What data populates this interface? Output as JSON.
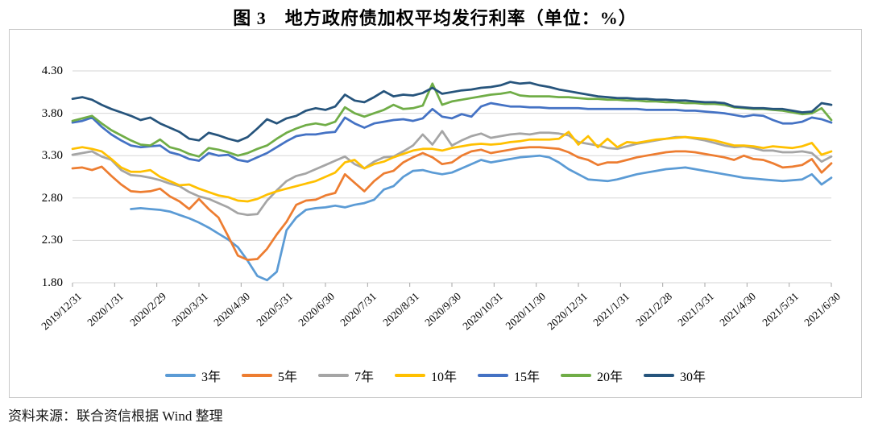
{
  "title": "图 3　地方政府债加权平均发行利率（单位：%）",
  "source": "资料来源：联合资信根据 Wind 整理",
  "colors": {
    "grid": "#d6d6d6",
    "axis": "#a6a6a6",
    "box_border": "#c9c9c9"
  },
  "chart_data": {
    "type": "line",
    "title": "图 3 地方政府债加权平均发行利率（单位：%）",
    "xlabel": "",
    "ylabel": "",
    "ylim": [
      1.8,
      4.3
    ],
    "y_ticks": [
      4.3,
      3.8,
      3.3,
      2.8,
      2.3,
      1.8
    ],
    "y_tick_labels": [
      "4.30",
      "3.80",
      "3.30",
      "2.80",
      "2.30",
      "1.80"
    ],
    "grid": "horizontal",
    "legend_position": "bottom",
    "x_unit": "weekly points from 2019/12/31 to 2021/6/30",
    "x_tick_labels": [
      "2019/12/31",
      "2020/1/31",
      "2020/2/29",
      "2020/3/31",
      "2020/4/30",
      "2020/5/31",
      "2020/6/30",
      "2020/7/31",
      "2020/8/31",
      "2020/9/30",
      "2020/10/31",
      "2020/11/30",
      "2020/12/31",
      "2021/1/31",
      "2021/2/28",
      "2021/3/31",
      "2021/4/30",
      "2021/5/31",
      "2021/6/30"
    ],
    "series": [
      {
        "name": "3年",
        "color": "#5B9BD5",
        "values": [
          null,
          null,
          null,
          null,
          null,
          null,
          2.67,
          2.68,
          2.67,
          2.66,
          2.64,
          2.6,
          2.56,
          2.51,
          2.45,
          2.38,
          2.31,
          2.22,
          2.06,
          1.88,
          1.83,
          1.93,
          2.42,
          2.57,
          2.66,
          2.68,
          2.69,
          2.71,
          2.69,
          2.72,
          2.74,
          2.78,
          2.9,
          2.94,
          3.05,
          3.12,
          3.13,
          3.1,
          3.08,
          3.1,
          3.15,
          3.2,
          3.25,
          3.22,
          3.24,
          3.26,
          3.28,
          3.29,
          3.3,
          3.28,
          3.22,
          3.14,
          3.08,
          3.02,
          3.01,
          3.0,
          3.02,
          3.05,
          3.08,
          3.1,
          3.12,
          3.14,
          3.15,
          3.16,
          3.14,
          3.12,
          3.1,
          3.08,
          3.06,
          3.04,
          3.03,
          3.02,
          3.01,
          3.0,
          3.01,
          3.02,
          3.08,
          2.96,
          3.04
        ]
      },
      {
        "name": "5年",
        "color": "#ED7D31",
        "values": [
          3.15,
          3.16,
          3.13,
          3.17,
          3.06,
          2.96,
          2.88,
          2.87,
          2.88,
          2.91,
          2.82,
          2.76,
          2.67,
          2.79,
          2.67,
          2.57,
          2.35,
          2.12,
          2.07,
          2.08,
          2.2,
          2.37,
          2.52,
          2.72,
          2.77,
          2.78,
          2.83,
          2.86,
          3.08,
          2.98,
          2.88,
          3.0,
          3.09,
          3.12,
          3.22,
          3.28,
          3.33,
          3.28,
          3.2,
          3.22,
          3.3,
          3.35,
          3.37,
          3.33,
          3.35,
          3.37,
          3.39,
          3.4,
          3.4,
          3.39,
          3.38,
          3.34,
          3.28,
          3.25,
          3.19,
          3.22,
          3.22,
          3.25,
          3.28,
          3.3,
          3.32,
          3.34,
          3.35,
          3.35,
          3.34,
          3.32,
          3.3,
          3.28,
          3.25,
          3.3,
          3.26,
          3.25,
          3.21,
          3.16,
          3.17,
          3.19,
          3.26,
          3.1,
          3.21
        ]
      },
      {
        "name": "7年",
        "color": "#A5A5A5",
        "values": [
          3.31,
          3.33,
          3.35,
          3.29,
          3.25,
          3.13,
          3.07,
          3.06,
          3.04,
          3.01,
          2.97,
          2.94,
          2.87,
          2.82,
          2.79,
          2.74,
          2.69,
          2.62,
          2.6,
          2.61,
          2.77,
          2.89,
          3.0,
          3.06,
          3.09,
          3.14,
          3.19,
          3.24,
          3.29,
          3.2,
          3.15,
          3.23,
          3.28,
          3.29,
          3.35,
          3.42,
          3.55,
          3.43,
          3.59,
          3.42,
          3.48,
          3.53,
          3.56,
          3.51,
          3.53,
          3.55,
          3.56,
          3.55,
          3.57,
          3.57,
          3.56,
          3.54,
          3.46,
          3.44,
          3.42,
          3.39,
          3.38,
          3.41,
          3.44,
          3.46,
          3.48,
          3.5,
          3.52,
          3.52,
          3.5,
          3.48,
          3.45,
          3.42,
          3.4,
          3.41,
          3.39,
          3.36,
          3.36,
          3.34,
          3.34,
          3.35,
          3.33,
          3.23,
          3.29
        ]
      },
      {
        "name": "10年",
        "color": "#FFC000",
        "values": [
          3.38,
          3.4,
          3.38,
          3.35,
          3.26,
          3.16,
          3.11,
          3.11,
          3.13,
          3.05,
          3.0,
          2.95,
          2.96,
          2.91,
          2.87,
          2.83,
          2.81,
          2.77,
          2.76,
          2.79,
          2.84,
          2.88,
          2.91,
          2.94,
          2.97,
          3.0,
          3.05,
          3.1,
          3.22,
          3.25,
          3.15,
          3.2,
          3.23,
          3.28,
          3.32,
          3.36,
          3.38,
          3.38,
          3.36,
          3.39,
          3.41,
          3.43,
          3.44,
          3.43,
          3.44,
          3.46,
          3.47,
          3.49,
          3.49,
          3.49,
          3.5,
          3.58,
          3.43,
          3.53,
          3.4,
          3.5,
          3.4,
          3.46,
          3.45,
          3.47,
          3.49,
          3.5,
          3.51,
          3.52,
          3.51,
          3.5,
          3.48,
          3.45,
          3.42,
          3.42,
          3.41,
          3.39,
          3.41,
          3.4,
          3.39,
          3.41,
          3.45,
          3.31,
          3.35
        ]
      },
      {
        "name": "15年",
        "color": "#4472C4",
        "values": [
          3.69,
          3.71,
          3.75,
          3.64,
          3.55,
          3.48,
          3.42,
          3.4,
          3.41,
          3.42,
          3.34,
          3.31,
          3.26,
          3.24,
          3.33,
          3.3,
          3.31,
          3.25,
          3.23,
          3.28,
          3.33,
          3.4,
          3.47,
          3.53,
          3.55,
          3.55,
          3.57,
          3.58,
          3.75,
          3.68,
          3.63,
          3.68,
          3.7,
          3.72,
          3.73,
          3.71,
          3.74,
          3.85,
          3.76,
          3.74,
          3.79,
          3.76,
          3.88,
          3.92,
          3.9,
          3.88,
          3.88,
          3.87,
          3.87,
          3.86,
          3.86,
          3.86,
          3.86,
          3.85,
          3.85,
          3.85,
          3.85,
          3.85,
          3.85,
          3.84,
          3.84,
          3.84,
          3.84,
          3.83,
          3.83,
          3.82,
          3.81,
          3.8,
          3.78,
          3.76,
          3.78,
          3.77,
          3.72,
          3.68,
          3.68,
          3.7,
          3.75,
          3.73,
          3.69
        ]
      },
      {
        "name": "20年",
        "color": "#70AD47",
        "values": [
          3.71,
          3.74,
          3.77,
          3.68,
          3.6,
          3.54,
          3.48,
          3.43,
          3.42,
          3.49,
          3.4,
          3.37,
          3.32,
          3.29,
          3.39,
          3.37,
          3.34,
          3.3,
          3.33,
          3.38,
          3.42,
          3.5,
          3.57,
          3.62,
          3.66,
          3.68,
          3.66,
          3.7,
          3.87,
          3.8,
          3.76,
          3.8,
          3.84,
          3.9,
          3.85,
          3.86,
          3.89,
          4.15,
          3.9,
          3.94,
          3.96,
          3.98,
          4.0,
          4.02,
          4.03,
          4.05,
          4.01,
          4.0,
          4.0,
          4.0,
          3.99,
          3.99,
          3.98,
          3.97,
          3.97,
          3.96,
          3.96,
          3.95,
          3.95,
          3.94,
          3.94,
          3.93,
          3.93,
          3.92,
          3.92,
          3.91,
          3.91,
          3.9,
          3.87,
          3.86,
          3.85,
          3.85,
          3.84,
          3.83,
          3.81,
          3.79,
          3.8,
          3.86,
          3.72
        ]
      },
      {
        "name": "30年",
        "color": "#26547C",
        "values": [
          3.97,
          3.99,
          3.96,
          3.9,
          3.85,
          3.81,
          3.77,
          3.72,
          3.75,
          3.68,
          3.63,
          3.58,
          3.5,
          3.48,
          3.57,
          3.54,
          3.5,
          3.47,
          3.52,
          3.62,
          3.73,
          3.68,
          3.74,
          3.77,
          3.83,
          3.86,
          3.84,
          3.88,
          4.02,
          3.95,
          3.93,
          3.99,
          4.06,
          4.0,
          4.02,
          4.01,
          4.04,
          4.1,
          4.03,
          4.05,
          4.07,
          4.08,
          4.1,
          4.11,
          4.13,
          4.17,
          4.15,
          4.16,
          4.13,
          4.11,
          4.08,
          4.06,
          4.04,
          4.02,
          4.0,
          3.99,
          3.98,
          3.98,
          3.97,
          3.97,
          3.96,
          3.96,
          3.95,
          3.95,
          3.94,
          3.93,
          3.93,
          3.92,
          3.88,
          3.87,
          3.86,
          3.86,
          3.85,
          3.85,
          3.83,
          3.81,
          3.82,
          3.92,
          3.9
        ]
      }
    ]
  }
}
